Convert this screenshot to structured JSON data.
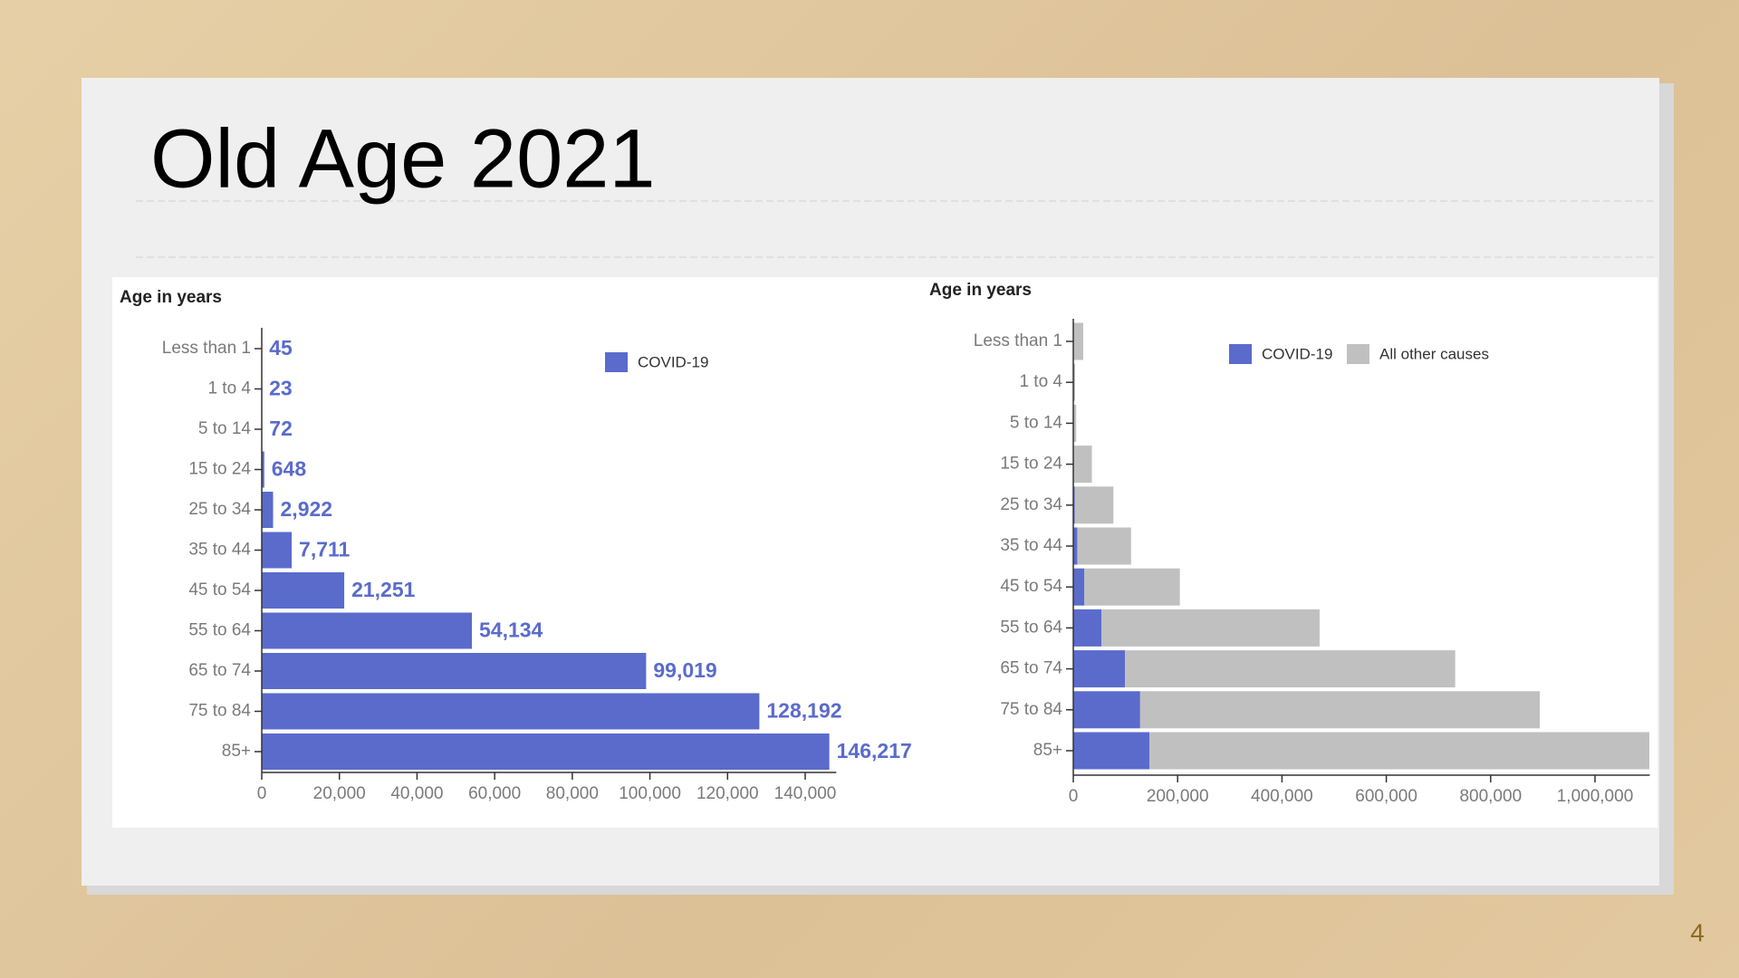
{
  "title": "Old Age 2021",
  "slide_number": "4",
  "chart_data": [
    {
      "type": "bar",
      "orientation": "horizontal",
      "stacked": false,
      "y_label": "Age in years",
      "categories": [
        "Less than 1",
        "1 to 4",
        "5 to 14",
        "15 to 24",
        "25 to 34",
        "35 to 44",
        "45 to 54",
        "55 to 64",
        "65 to 74",
        "75 to 84",
        "85+"
      ],
      "series": [
        {
          "name": "COVID-19",
          "color": "#5a6bcc",
          "values": [
            45,
            23,
            72,
            648,
            2922,
            7711,
            21251,
            54134,
            99019,
            128192,
            146217
          ],
          "value_labels": [
            "45",
            "23",
            "72",
            "648",
            "2,922",
            "7,711",
            "21,251",
            "54,134",
            "99,019",
            "128,192",
            "146,217"
          ]
        }
      ],
      "xlim": [
        0,
        148000
      ],
      "xticks": [
        0,
        {
          "value": 20000,
          "label": "20,000"
        },
        {
          "value": 40000,
          "label": "40,000"
        },
        {
          "value": 60000,
          "label": "60,000"
        },
        {
          "value": 80000,
          "label": "80,000"
        },
        {
          "value": 100000,
          "label": "100,000"
        },
        {
          "value": 120000,
          "label": "120,000"
        },
        {
          "value": 140000,
          "label": "140,000"
        }
      ]
    },
    {
      "type": "bar",
      "orientation": "horizontal",
      "stacked": true,
      "y_label": "Age in years",
      "categories": [
        "Less than 1",
        "1 to 4",
        "5 to 14",
        "15 to 24",
        "25 to 34",
        "35 to 44",
        "45 to 54",
        "55 to 64",
        "65 to 74",
        "75 to 84",
        "85+"
      ],
      "series": [
        {
          "name": "COVID-19",
          "color": "#5a6bcc",
          "values": [
            45,
            23,
            72,
            648,
            2922,
            7711,
            21251,
            54134,
            99019,
            128192,
            146217
          ]
        },
        {
          "name": "All other causes",
          "color": "#c0c0c0",
          "values": [
            19000,
            3500,
            5500,
            35000,
            74000,
            103000,
            183000,
            418000,
            633000,
            766000,
            958000
          ]
        }
      ],
      "xlim": [
        0,
        1105000
      ],
      "xticks": [
        0,
        {
          "value": 200000,
          "label": "200,000"
        },
        {
          "value": 400000,
          "label": "400,000"
        },
        {
          "value": 600000,
          "label": "600,000"
        },
        {
          "value": 800000,
          "label": "800,000"
        },
        {
          "value": 1000000,
          "label": "1,000,000"
        }
      ]
    }
  ]
}
